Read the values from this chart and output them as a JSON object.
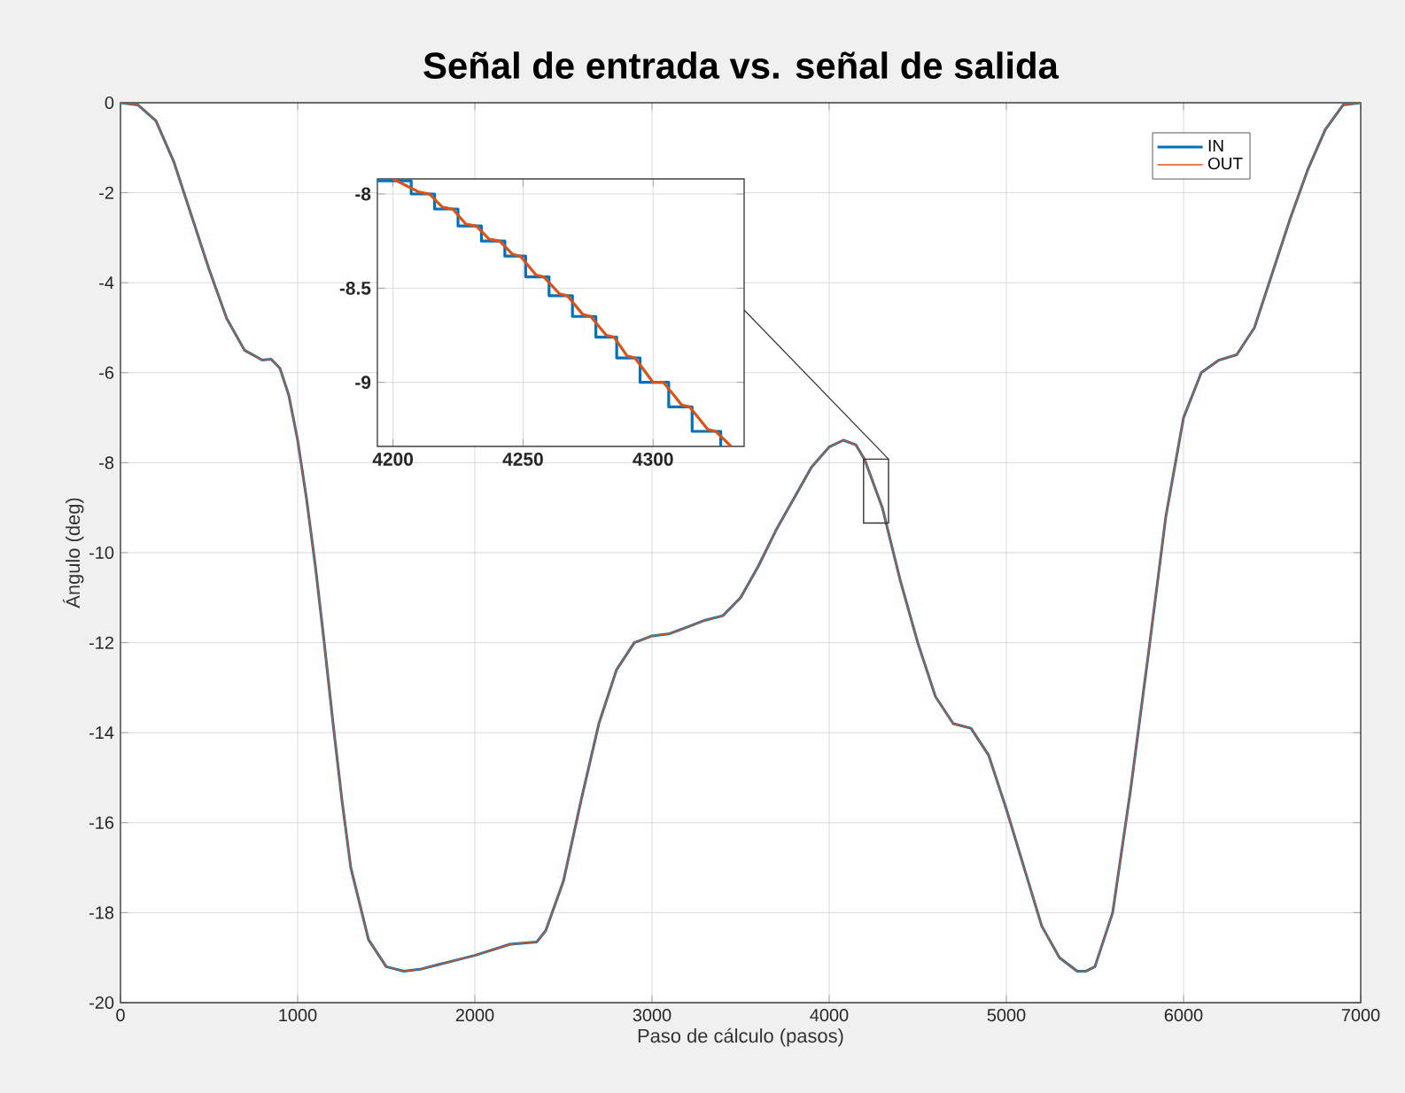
{
  "chart_data": [
    {
      "type": "line",
      "title": "Señal de entrada vs. señal de salida",
      "xlabel": "Paso de cálculo (pasos)",
      "ylabel": "Ángulo (deg)",
      "x": [
        0,
        100,
        200,
        300,
        400,
        500,
        600,
        700,
        800,
        850,
        900,
        950,
        1000,
        1050,
        1100,
        1150,
        1200,
        1250,
        1300,
        1400,
        1500,
        1600,
        1700,
        1800,
        2000,
        2200,
        2350,
        2400,
        2500,
        2600,
        2700,
        2800,
        2900,
        3000,
        3100,
        3200,
        3300,
        3400,
        3500,
        3600,
        3700,
        3800,
        3900,
        4000,
        4080,
        4150,
        4200,
        4300,
        4400,
        4500,
        4600,
        4700,
        4800,
        4900,
        5000,
        5100,
        5200,
        5300,
        5400,
        5450,
        5500,
        5600,
        5700,
        5800,
        5900,
        6000,
        6100,
        6200,
        6300,
        6400,
        6500,
        6600,
        6700,
        6800,
        6900,
        7000
      ],
      "series": [
        {
          "name": "IN",
          "color": "#0072bd",
          "values": [
            0,
            -0.05,
            -0.4,
            -1.3,
            -2.5,
            -3.7,
            -4.8,
            -5.5,
            -5.72,
            -5.7,
            -5.9,
            -6.5,
            -7.5,
            -8.8,
            -10.3,
            -12,
            -13.8,
            -15.5,
            -17,
            -18.6,
            -19.2,
            -19.3,
            -19.25,
            -19.15,
            -18.95,
            -18.7,
            -18.65,
            -18.4,
            -17.3,
            -15.5,
            -13.8,
            -12.6,
            -12.0,
            -11.85,
            -11.8,
            -11.65,
            -11.5,
            -11.4,
            -11.0,
            -10.3,
            -9.5,
            -8.8,
            -8.1,
            -7.65,
            -7.5,
            -7.6,
            -7.93,
            -9.0,
            -10.6,
            -12.0,
            -13.2,
            -13.8,
            -13.9,
            -14.5,
            -15.7,
            -17.0,
            -18.3,
            -19.0,
            -19.3,
            -19.3,
            -19.2,
            -18.0,
            -15.3,
            -12.3,
            -9.2,
            -7.0,
            -6.0,
            -5.72,
            -5.6,
            -5.0,
            -3.8,
            -2.6,
            -1.5,
            -0.6,
            -0.05,
            0
          ]
        },
        {
          "name": "OUT",
          "color": "#d95319",
          "values": [
            0,
            -0.05,
            -0.4,
            -1.3,
            -2.5,
            -3.7,
            -4.8,
            -5.5,
            -5.72,
            -5.7,
            -5.9,
            -6.5,
            -7.5,
            -8.8,
            -10.3,
            -12,
            -13.8,
            -15.5,
            -17,
            -18.6,
            -19.2,
            -19.3,
            -19.25,
            -19.15,
            -18.95,
            -18.7,
            -18.65,
            -18.4,
            -17.3,
            -15.5,
            -13.8,
            -12.6,
            -12.0,
            -11.85,
            -11.8,
            -11.65,
            -11.5,
            -11.4,
            -11.0,
            -10.3,
            -9.5,
            -8.8,
            -8.1,
            -7.65,
            -7.5,
            -7.6,
            -7.93,
            -9.0,
            -10.6,
            -12.0,
            -13.2,
            -13.8,
            -13.9,
            -14.5,
            -15.7,
            -17.0,
            -18.3,
            -19.0,
            -19.3,
            -19.3,
            -19.2,
            -18.0,
            -15.3,
            -12.3,
            -9.2,
            -7.0,
            -6.0,
            -5.72,
            -5.6,
            -5.0,
            -3.8,
            -2.6,
            -1.5,
            -0.6,
            -0.05,
            0
          ]
        }
      ],
      "xlim": [
        0,
        7000
      ],
      "ylim": [
        -20,
        0
      ],
      "xticks": [
        0,
        1000,
        2000,
        3000,
        4000,
        5000,
        6000,
        7000
      ],
      "yticks": [
        -20,
        -18,
        -16,
        -14,
        -12,
        -10,
        -8,
        -6,
        -4,
        -2,
        0
      ],
      "grid": true,
      "legend": "top right"
    },
    {
      "type": "line",
      "series": [
        {
          "type": "step",
          "color": "#0072bd",
          "x": [
            4194,
            4207,
            4216,
            4225,
            4234,
            4243,
            4251,
            4260,
            4269,
            4278,
            4286,
            4295,
            4306,
            4315,
            4326
          ],
          "values": [
            -7.93,
            -8.0,
            -8.08,
            -8.17,
            -8.25,
            -8.33,
            -8.44,
            -8.54,
            -8.65,
            -8.76,
            -8.87,
            -9.0,
            -9.13,
            -9.26,
            -9.34
          ]
        },
        {
          "color": "#d95319",
          "x": [
            4200,
            4210,
            4214,
            4219,
            4223,
            4228,
            4232,
            4237,
            4241,
            4246,
            4249,
            4255,
            4258,
            4264,
            4267,
            4273,
            4276,
            4282,
            4285,
            4290,
            4293,
            4300,
            4304,
            4311,
            4314,
            4321,
            4324,
            4330
          ],
          "values": [
            -7.92,
            -7.99,
            -8.0,
            -8.07,
            -8.08,
            -8.16,
            -8.17,
            -8.24,
            -8.25,
            -8.32,
            -8.33,
            -8.43,
            -8.44,
            -8.53,
            -8.54,
            -8.64,
            -8.65,
            -8.75,
            -8.76,
            -8.86,
            -8.87,
            -9.0,
            -9.0,
            -9.12,
            -9.13,
            -9.25,
            -9.26,
            -9.34
          ]
        }
      ],
      "xlim": [
        4194,
        4335
      ],
      "ylim": [
        -9.34,
        -7.92
      ],
      "xticks": [
        4200,
        4250,
        4300
      ],
      "yticks": [
        -9,
        -8.5,
        -8
      ],
      "grid": true
    }
  ]
}
